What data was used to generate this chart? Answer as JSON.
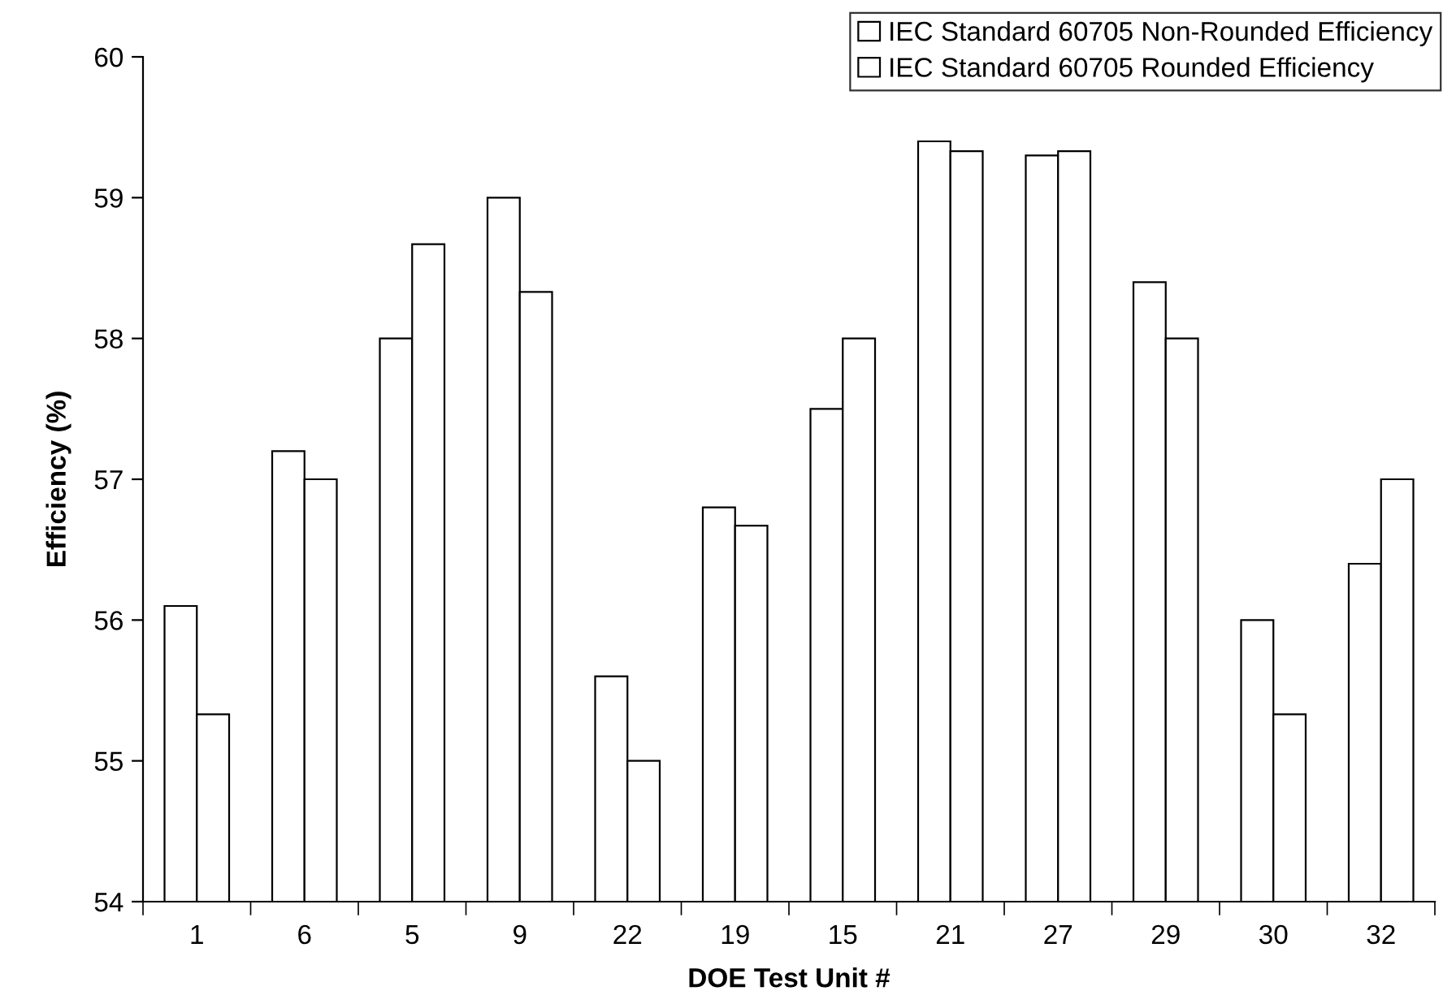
{
  "chart_data": {
    "type": "bar",
    "xlabel": "DOE Test Unit #",
    "ylabel": "Efficiency (%)",
    "categories": [
      "1",
      "6",
      "5",
      "9",
      "22",
      "19",
      "15",
      "21",
      "27",
      "29",
      "30",
      "32"
    ],
    "series": [
      {
        "name": "IEC Standard 60705 Non-Rounded Efficiency",
        "color": "#ffffff",
        "values": [
          56.1,
          57.2,
          58.0,
          59.0,
          55.6,
          56.8,
          57.5,
          59.4,
          59.3,
          58.4,
          56.0,
          56.4
        ]
      },
      {
        "name": "IEC Standard 60705 Rounded Efficiency",
        "color": "#ffffff",
        "values": [
          55.33,
          57.0,
          58.67,
          58.33,
          55.0,
          56.67,
          58.0,
          59.33,
          59.33,
          58.0,
          55.33,
          57.0
        ]
      }
    ],
    "ylim": [
      54,
      60
    ],
    "yticks": [
      54,
      55,
      56,
      57,
      58,
      59,
      60
    ],
    "grid": false,
    "legend": "top right"
  }
}
